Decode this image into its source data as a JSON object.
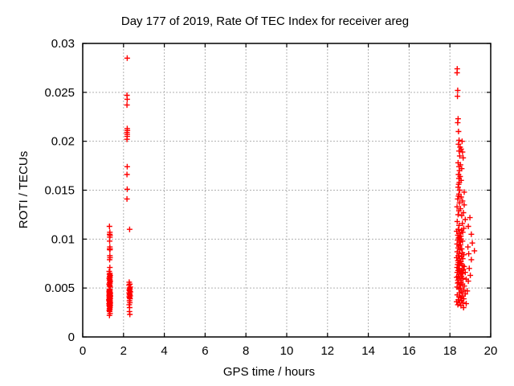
{
  "window": {
    "background": "#ffffff"
  },
  "chart_data": {
    "type": "scatter",
    "title": "Day 177 of 2019, Rate Of TEC Index for receiver areg",
    "xlabel": "GPS time / hours",
    "ylabel": "ROTI / TECUs",
    "xlim": [
      0,
      20
    ],
    "ylim": [
      0,
      0.03
    ],
    "xticks": {
      "values": [
        0,
        2,
        4,
        6,
        8,
        10,
        12,
        14,
        16,
        18,
        20
      ],
      "labels": [
        "0",
        "2",
        "4",
        "6",
        "8",
        "10",
        "12",
        "14",
        "16",
        "18",
        "20"
      ]
    },
    "yticks": {
      "values": [
        0,
        0.005,
        0.01,
        0.015,
        0.02,
        0.025,
        0.03
      ],
      "labels": [
        "0",
        "0.005",
        "0.01",
        "0.015",
        "0.02",
        "0.025",
        "0.03"
      ]
    },
    "grid": true,
    "grid_style": "dashed",
    "legend_position": "none",
    "marker": "plus",
    "marker_size": 7,
    "colors": {
      "marker": "#ff0000",
      "grid": "#b0b0b0",
      "border": "#000000",
      "text": "#000000"
    },
    "series": [
      {
        "name": "ROTI",
        "points": [
          [
            1.31,
            0.0113
          ],
          [
            1.33,
            0.0107
          ],
          [
            1.32,
            0.0105
          ],
          [
            1.34,
            0.0104
          ],
          [
            1.33,
            0.0102
          ],
          [
            1.32,
            0.0098
          ],
          [
            1.33,
            0.0092
          ],
          [
            1.32,
            0.009
          ],
          [
            1.34,
            0.009
          ],
          [
            1.33,
            0.0089
          ],
          [
            1.33,
            0.0083
          ],
          [
            1.34,
            0.0081
          ],
          [
            1.32,
            0.0079
          ],
          [
            1.33,
            0.0071
          ],
          [
            1.3,
            0.0067
          ],
          [
            1.33,
            0.0065
          ],
          [
            1.31,
            0.0064
          ],
          [
            1.35,
            0.0063
          ],
          [
            1.32,
            0.0062
          ],
          [
            1.34,
            0.0061
          ],
          [
            1.3,
            0.006
          ],
          [
            1.33,
            0.0059
          ],
          [
            1.31,
            0.0058
          ],
          [
            1.36,
            0.0057
          ],
          [
            1.32,
            0.0056
          ],
          [
            1.34,
            0.0055
          ],
          [
            1.29,
            0.0054
          ],
          [
            1.33,
            0.0053
          ],
          [
            1.31,
            0.0052
          ],
          [
            1.35,
            0.0051
          ],
          [
            1.32,
            0.0049
          ],
          [
            1.3,
            0.0048
          ],
          [
            1.34,
            0.0048
          ],
          [
            1.31,
            0.0047
          ],
          [
            1.33,
            0.0046
          ],
          [
            1.29,
            0.0046
          ],
          [
            1.35,
            0.0045
          ],
          [
            1.32,
            0.0045
          ],
          [
            1.3,
            0.0044
          ],
          [
            1.34,
            0.0044
          ],
          [
            1.31,
            0.0043
          ],
          [
            1.33,
            0.0043
          ],
          [
            1.36,
            0.0042
          ],
          [
            1.29,
            0.0042
          ],
          [
            1.32,
            0.0041
          ],
          [
            1.34,
            0.0041
          ],
          [
            1.3,
            0.004
          ],
          [
            1.33,
            0.004
          ],
          [
            1.31,
            0.0039
          ],
          [
            1.35,
            0.0039
          ],
          [
            1.32,
            0.0038
          ],
          [
            1.28,
            0.0038
          ],
          [
            1.34,
            0.0037
          ],
          [
            1.3,
            0.0037
          ],
          [
            1.33,
            0.0036
          ],
          [
            1.31,
            0.0036
          ],
          [
            1.35,
            0.0035
          ],
          [
            1.32,
            0.0035
          ],
          [
            1.29,
            0.0034
          ],
          [
            1.34,
            0.0034
          ],
          [
            1.31,
            0.0033
          ],
          [
            1.33,
            0.0033
          ],
          [
            1.3,
            0.0032
          ],
          [
            1.35,
            0.0032
          ],
          [
            1.32,
            0.0031
          ],
          [
            1.34,
            0.003
          ],
          [
            1.31,
            0.0029
          ],
          [
            1.33,
            0.0028
          ],
          [
            1.3,
            0.0027
          ],
          [
            1.32,
            0.0026
          ],
          [
            1.34,
            0.0024
          ],
          [
            1.31,
            0.0022
          ],
          [
            2.18,
            0.0285
          ],
          [
            2.17,
            0.0247
          ],
          [
            2.18,
            0.0243
          ],
          [
            2.17,
            0.0237
          ],
          [
            2.18,
            0.0213
          ],
          [
            2.19,
            0.0211
          ],
          [
            2.17,
            0.0209
          ],
          [
            2.18,
            0.0207
          ],
          [
            2.18,
            0.0205
          ],
          [
            2.17,
            0.0202
          ],
          [
            2.18,
            0.0174
          ],
          [
            2.17,
            0.0166
          ],
          [
            2.18,
            0.0151
          ],
          [
            2.17,
            0.0141
          ],
          [
            2.3,
            0.011
          ],
          [
            2.28,
            0.0056
          ],
          [
            2.31,
            0.0054
          ],
          [
            2.27,
            0.0053
          ],
          [
            2.33,
            0.0051
          ],
          [
            2.29,
            0.005
          ],
          [
            2.32,
            0.0049
          ],
          [
            2.28,
            0.0048
          ],
          [
            2.3,
            0.0047
          ],
          [
            2.34,
            0.0046
          ],
          [
            2.27,
            0.0045
          ],
          [
            2.31,
            0.0044
          ],
          [
            2.29,
            0.0043
          ],
          [
            2.33,
            0.0042
          ],
          [
            2.28,
            0.0041
          ],
          [
            2.3,
            0.004
          ],
          [
            2.32,
            0.0039
          ],
          [
            2.29,
            0.0037
          ],
          [
            2.31,
            0.0035
          ],
          [
            2.28,
            0.0033
          ],
          [
            2.3,
            0.003
          ],
          [
            2.29,
            0.0026
          ],
          [
            2.31,
            0.0023
          ],
          [
            18.36,
            0.0274
          ],
          [
            18.35,
            0.027
          ],
          [
            18.38,
            0.0252
          ],
          [
            18.37,
            0.0246
          ],
          [
            18.4,
            0.0223
          ],
          [
            18.38,
            0.0219
          ],
          [
            18.42,
            0.021
          ],
          [
            18.45,
            0.0201
          ],
          [
            18.6,
            0.02
          ],
          [
            18.42,
            0.0197
          ],
          [
            18.5,
            0.0194
          ],
          [
            18.55,
            0.0192
          ],
          [
            18.45,
            0.019
          ],
          [
            18.62,
            0.0189
          ],
          [
            18.48,
            0.0185
          ],
          [
            18.65,
            0.0183
          ],
          [
            18.4,
            0.0178
          ],
          [
            18.52,
            0.0176
          ],
          [
            18.45,
            0.0174
          ],
          [
            18.58,
            0.0172
          ],
          [
            18.47,
            0.017
          ],
          [
            18.42,
            0.0166
          ],
          [
            18.5,
            0.0164
          ],
          [
            18.44,
            0.0162
          ],
          [
            18.55,
            0.016
          ],
          [
            18.46,
            0.0158
          ],
          [
            18.43,
            0.0156
          ],
          [
            18.4,
            0.0153
          ],
          [
            18.48,
            0.015
          ],
          [
            18.7,
            0.0148
          ],
          [
            18.44,
            0.0146
          ],
          [
            18.42,
            0.0144
          ],
          [
            18.55,
            0.0143
          ],
          [
            18.38,
            0.0141
          ],
          [
            18.62,
            0.0139
          ],
          [
            18.47,
            0.0137
          ],
          [
            18.7,
            0.0135
          ],
          [
            18.35,
            0.0133
          ],
          [
            18.52,
            0.0131
          ],
          [
            18.44,
            0.0129
          ],
          [
            18.66,
            0.0127
          ],
          [
            18.4,
            0.0125
          ],
          [
            18.58,
            0.0124
          ],
          [
            18.98,
            0.0122
          ],
          [
            18.75,
            0.012
          ],
          [
            18.36,
            0.0118
          ],
          [
            18.61,
            0.0116
          ],
          [
            18.45,
            0.0114
          ],
          [
            18.9,
            0.0113
          ],
          [
            18.68,
            0.0111
          ],
          [
            18.41,
            0.011
          ],
          [
            18.57,
            0.0109
          ],
          [
            18.33,
            0.0108
          ],
          [
            18.63,
            0.0107
          ],
          [
            18.48,
            0.0106
          ],
          [
            19.05,
            0.0105
          ],
          [
            18.39,
            0.0104
          ],
          [
            18.54,
            0.0103
          ],
          [
            18.46,
            0.0102
          ],
          [
            18.42,
            0.0101
          ],
          [
            18.55,
            0.01
          ],
          [
            18.38,
            0.0099
          ],
          [
            18.62,
            0.0098
          ],
          [
            18.47,
            0.0097
          ],
          [
            19.1,
            0.0096
          ],
          [
            18.35,
            0.0095
          ],
          [
            18.52,
            0.0094
          ],
          [
            18.44,
            0.0093
          ],
          [
            18.88,
            0.0092
          ],
          [
            18.4,
            0.0091
          ],
          [
            18.58,
            0.009
          ],
          [
            18.49,
            0.0089
          ],
          [
            19.2,
            0.0088
          ],
          [
            18.36,
            0.0087
          ],
          [
            18.61,
            0.0086
          ],
          [
            18.45,
            0.0085
          ],
          [
            18.92,
            0.0085
          ],
          [
            18.68,
            0.0084
          ],
          [
            18.41,
            0.0083
          ],
          [
            18.57,
            0.0082
          ],
          [
            18.33,
            0.0081
          ],
          [
            18.63,
            0.008
          ],
          [
            18.48,
            0.008
          ],
          [
            19.05,
            0.0079
          ],
          [
            18.39,
            0.0078
          ],
          [
            18.54,
            0.0077
          ],
          [
            18.46,
            0.0076
          ],
          [
            18.42,
            0.0076
          ],
          [
            18.55,
            0.0075
          ],
          [
            18.38,
            0.0074
          ],
          [
            18.62,
            0.0073
          ],
          [
            18.47,
            0.0073
          ],
          [
            18.7,
            0.0072
          ],
          [
            18.35,
            0.0071
          ],
          [
            18.95,
            0.007
          ],
          [
            18.44,
            0.007
          ],
          [
            18.66,
            0.0069
          ],
          [
            18.4,
            0.0068
          ],
          [
            18.58,
            0.0068
          ],
          [
            18.49,
            0.0067
          ],
          [
            18.75,
            0.0066
          ],
          [
            18.36,
            0.0066
          ],
          [
            18.61,
            0.0065
          ],
          [
            18.45,
            0.0064
          ],
          [
            18.53,
            0.0064
          ],
          [
            19.0,
            0.0063
          ],
          [
            18.41,
            0.0062
          ],
          [
            18.57,
            0.0062
          ],
          [
            18.33,
            0.0061
          ],
          [
            18.63,
            0.006
          ],
          [
            18.48,
            0.006
          ],
          [
            18.8,
            0.0059
          ],
          [
            18.39,
            0.0058
          ],
          [
            18.54,
            0.0058
          ],
          [
            18.9,
            0.0057
          ],
          [
            18.42,
            0.0056
          ],
          [
            18.55,
            0.0056
          ],
          [
            18.38,
            0.0055
          ],
          [
            18.62,
            0.0054
          ],
          [
            18.47,
            0.0053
          ],
          [
            18.7,
            0.0052
          ],
          [
            18.35,
            0.0051
          ],
          [
            18.52,
            0.005
          ],
          [
            18.44,
            0.0049
          ],
          [
            18.66,
            0.0048
          ],
          [
            18.85,
            0.0047
          ],
          [
            18.58,
            0.0046
          ],
          [
            18.49,
            0.0045
          ],
          [
            18.75,
            0.0044
          ],
          [
            18.36,
            0.0043
          ],
          [
            18.61,
            0.0042
          ],
          [
            18.45,
            0.0041
          ],
          [
            18.53,
            0.004
          ],
          [
            18.68,
            0.0039
          ],
          [
            18.41,
            0.0038
          ],
          [
            18.57,
            0.0037
          ],
          [
            18.33,
            0.0036
          ],
          [
            18.63,
            0.0035
          ],
          [
            18.48,
            0.0035
          ],
          [
            18.8,
            0.0034
          ],
          [
            18.39,
            0.0033
          ],
          [
            18.54,
            0.0032
          ],
          [
            18.67,
            0.003
          ]
        ]
      }
    ]
  },
  "layout_note": "single scatter plot, no legend, three point clusters near 1.3h, 2.2h and 18.2-19.2h"
}
